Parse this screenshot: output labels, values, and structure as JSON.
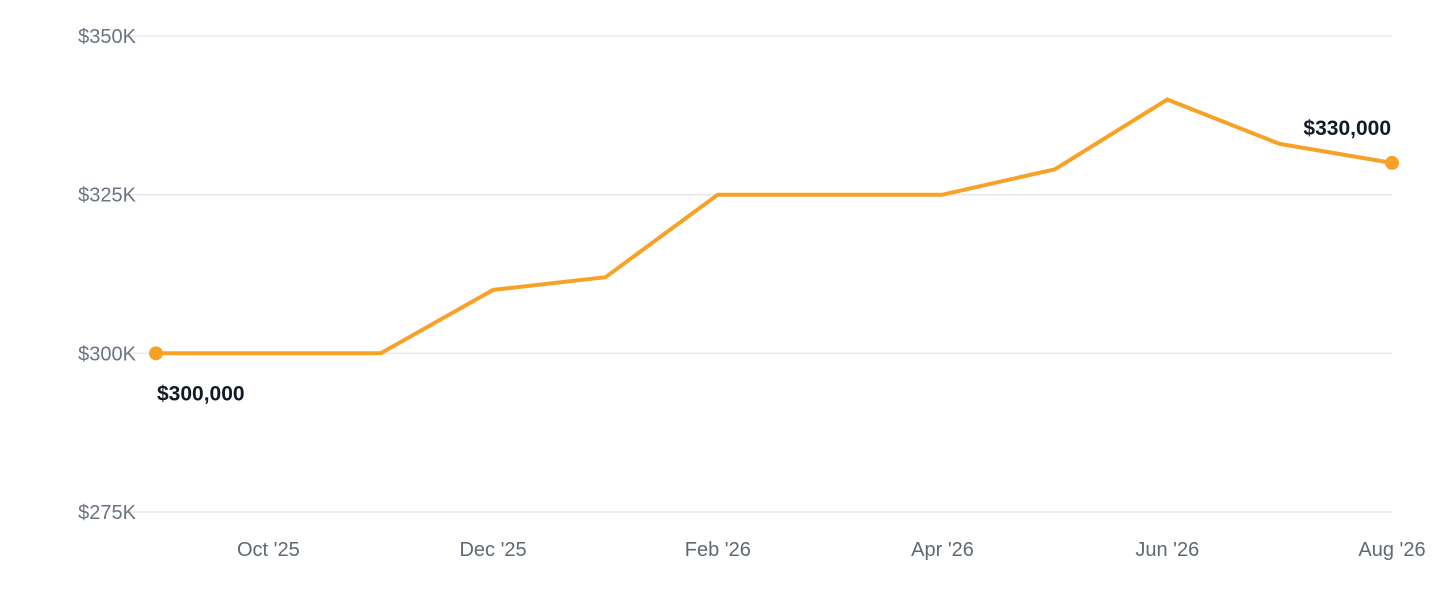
{
  "chart_data": {
    "type": "line",
    "series": [
      {
        "values": [
          {
            "x": "2025-09",
            "y": 300000
          },
          {
            "x": "2025-10",
            "y": 300000
          },
          {
            "x": "2025-11",
            "y": 300000
          },
          {
            "x": "2025-12",
            "y": 310000
          },
          {
            "x": "2026-01",
            "y": 312000
          },
          {
            "x": "2026-02",
            "y": 325000
          },
          {
            "x": "2026-03",
            "y": 325000
          },
          {
            "x": "2026-04",
            "y": 325000
          },
          {
            "x": "2026-05",
            "y": 329000
          },
          {
            "x": "2026-06",
            "y": 340000
          },
          {
            "x": "2026-07",
            "y": 333000
          },
          {
            "x": "2026-08",
            "y": 330000
          }
        ]
      }
    ],
    "x_range": [
      "2025-09",
      "2026-08"
    ],
    "ylim": [
      275000,
      350000
    ],
    "y_ticks": [
      {
        "value": 350000,
        "label": "$350K"
      },
      {
        "value": 325000,
        "label": "$325K"
      },
      {
        "value": 300000,
        "label": "$300K"
      },
      {
        "value": 275000,
        "label": "$275K"
      }
    ],
    "x_ticks": [
      {
        "value": "2025-10",
        "label": "Oct '25"
      },
      {
        "value": "2025-12",
        "label": "Dec '25"
      },
      {
        "value": "2026-02",
        "label": "Feb '26"
      },
      {
        "value": "2026-04",
        "label": "Apr '26"
      },
      {
        "value": "2026-06",
        "label": "Jun '26"
      },
      {
        "value": "2026-08",
        "label": "Aug '26"
      }
    ],
    "annotations": [
      {
        "x": "2025-09",
        "y": 300000,
        "label": "$300,000"
      },
      {
        "x": "2026-08",
        "y": 330000,
        "label": "$330,000"
      }
    ],
    "grid": true,
    "line_color": "#f7a226",
    "label_color": "#111b27",
    "gridline_color": "#e6e8eb",
    "tick_color": "#6b7480"
  }
}
